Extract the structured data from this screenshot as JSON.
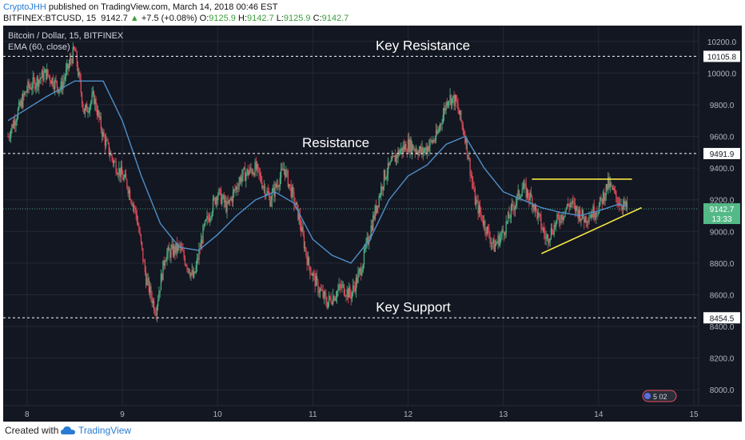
{
  "header": {
    "author": "CryptoJHH",
    "published_text": "published on TradingView.com, March 14, 2018 00:46 EST",
    "symbol": "BITFINEX:BTCUSD, 15",
    "last_price": "9142.7",
    "change_arrow": "▲",
    "change": "+7.5 (+0.08%)",
    "open_label": "O:",
    "open": "9125.9",
    "high_label": "H:",
    "high": "9142.7",
    "low_label": "L:",
    "low": "9125.9",
    "close_label": "C:",
    "close": "9142.7"
  },
  "legend": {
    "title": "Bitcoin / Dollar, 15, BITFINEX",
    "indicator": "EMA (60, close)"
  },
  "footer": {
    "created_with": "Created with",
    "brand": "TradingView"
  },
  "colors": {
    "background": "#131722",
    "grid": "#232834",
    "candle_up": "#53b987",
    "candle_down": "#eb4d5c",
    "ema": "#4f8fc9",
    "trendline": "#f5e642",
    "level_line": "#ffffff",
    "price_tag": "#53b987"
  },
  "chart_data": {
    "type": "candlestick",
    "ylim": [
      7900,
      10300
    ],
    "x_ticks": [
      "8",
      "9",
      "10",
      "11",
      "12",
      "13",
      "14",
      "15"
    ],
    "y_ticks": [
      "10200.0",
      "10000.0",
      "9800.0",
      "9600.0",
      "9400.0",
      "9200.0",
      "9000.0",
      "8800.0",
      "8600.0",
      "8400.0",
      "8200.0",
      "8000.0"
    ],
    "y_tick_values": [
      10200,
      10000,
      9800,
      9600,
      9400,
      9200,
      9000,
      8800,
      8600,
      8400,
      8200,
      8000
    ],
    "levels": [
      {
        "label": "Key Resistance",
        "price": 10105.8,
        "tag": "10105.8"
      },
      {
        "label": "Resistance",
        "price": 9491.9,
        "tag": "9491.9"
      },
      {
        "label": "Key Support",
        "price": 8454.5,
        "tag": "8454.5"
      }
    ],
    "current_price": {
      "price": 9142.7,
      "tag": "9142.7",
      "countdown": "13:33"
    },
    "anchors": [
      [
        7.8,
        9600
      ],
      [
        8.0,
        9900
      ],
      [
        8.2,
        10000
      ],
      [
        8.35,
        9900
      ],
      [
        8.5,
        10150
      ],
      [
        8.6,
        9750
      ],
      [
        8.7,
        9850
      ],
      [
        8.8,
        9600
      ],
      [
        8.9,
        9450
      ],
      [
        9.05,
        9300
      ],
      [
        9.15,
        9100
      ],
      [
        9.25,
        8700
      ],
      [
        9.35,
        8500
      ],
      [
        9.45,
        8850
      ],
      [
        9.6,
        8900
      ],
      [
        9.75,
        8700
      ],
      [
        9.85,
        9000
      ],
      [
        10.0,
        9250
      ],
      [
        10.1,
        9150
      ],
      [
        10.25,
        9350
      ],
      [
        10.4,
        9400
      ],
      [
        10.55,
        9200
      ],
      [
        10.7,
        9400
      ],
      [
        10.85,
        9100
      ],
      [
        10.95,
        8800
      ],
      [
        11.05,
        8650
      ],
      [
        11.15,
        8550
      ],
      [
        11.3,
        8650
      ],
      [
        11.4,
        8600
      ],
      [
        11.5,
        8750
      ],
      [
        11.6,
        9000
      ],
      [
        11.75,
        9350
      ],
      [
        11.9,
        9500
      ],
      [
        12.0,
        9550
      ],
      [
        12.15,
        9500
      ],
      [
        12.3,
        9600
      ],
      [
        12.42,
        9850
      ],
      [
        12.5,
        9820
      ],
      [
        12.6,
        9600
      ],
      [
        12.7,
        9200
      ],
      [
        12.8,
        9050
      ],
      [
        12.9,
        8900
      ],
      [
        13.0,
        9000
      ],
      [
        13.1,
        9150
      ],
      [
        13.2,
        9280
      ],
      [
        13.3,
        9200
      ],
      [
        13.45,
        8950
      ],
      [
        13.55,
        9050
      ],
      [
        13.7,
        9180
      ],
      [
        13.85,
        9080
      ],
      [
        14.0,
        9150
      ],
      [
        14.1,
        9300
      ],
      [
        14.2,
        9200
      ],
      [
        14.3,
        9140
      ]
    ],
    "ema": [
      [
        7.8,
        9700
      ],
      [
        8.2,
        9850
      ],
      [
        8.5,
        9950
      ],
      [
        8.8,
        9950
      ],
      [
        9.0,
        9700
      ],
      [
        9.2,
        9350
      ],
      [
        9.4,
        9050
      ],
      [
        9.6,
        8900
      ],
      [
        9.8,
        8880
      ],
      [
        10.0,
        8980
      ],
      [
        10.2,
        9100
      ],
      [
        10.4,
        9200
      ],
      [
        10.6,
        9250
      ],
      [
        10.8,
        9180
      ],
      [
        11.0,
        8950
      ],
      [
        11.2,
        8850
      ],
      [
        11.4,
        8800
      ],
      [
        11.6,
        8950
      ],
      [
        11.8,
        9200
      ],
      [
        12.0,
        9350
      ],
      [
        12.2,
        9420
      ],
      [
        12.4,
        9550
      ],
      [
        12.6,
        9600
      ],
      [
        12.8,
        9400
      ],
      [
        13.0,
        9250
      ],
      [
        13.2,
        9200
      ],
      [
        13.4,
        9150
      ],
      [
        13.6,
        9120
      ],
      [
        13.8,
        9100
      ],
      [
        14.0,
        9130
      ],
      [
        14.2,
        9170
      ],
      [
        14.3,
        9160
      ]
    ],
    "trendlines": [
      {
        "x1": 13.3,
        "y1": 9330,
        "x2": 14.35,
        "y2": 9330
      },
      {
        "x1": 13.4,
        "y1": 8860,
        "x2": 14.45,
        "y2": 9150
      }
    ]
  }
}
